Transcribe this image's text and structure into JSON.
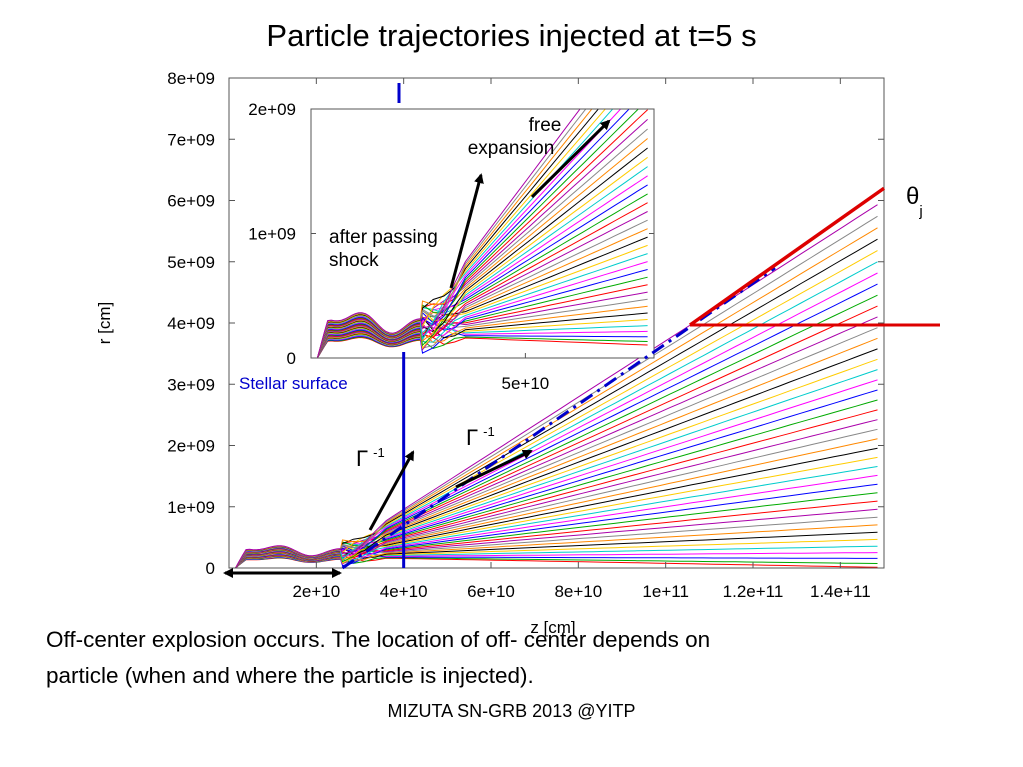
{
  "slide": {
    "title": "Particle trajectories injected at  t=5 s",
    "caption_line1": "Off-center explosion occurs. The location of off- center depends on",
    "caption_line2": "particle (when and where the particle is injected).",
    "footer": "MIZUTA SN-GRB 2013 @YITP"
  },
  "chart_data": [
    {
      "type": "line",
      "role": "main",
      "xlabel": "z [cm]",
      "ylabel": "r [cm]",
      "xlim": [
        0,
        150000000000.0
      ],
      "ylim": [
        0,
        8000000000.0
      ],
      "x_ticks": [
        20000000000.0,
        40000000000.0,
        60000000000.0,
        80000000000.0,
        100000000000.0,
        120000000000.0,
        140000000000.0
      ],
      "x_tick_labels": [
        "2e+10",
        "4e+10",
        "6e+10",
        "8e+10",
        "1e+11",
        "1.2e+11",
        "1.4e+11"
      ],
      "y_ticks": [
        0,
        1000000000.0,
        2000000000.0,
        3000000000.0,
        4000000000.0,
        5000000000.0,
        6000000000.0,
        7000000000.0,
        8000000000.0
      ],
      "y_tick_labels": [
        "0",
        "1e+09",
        "2e+09",
        "3e+09",
        "4e+09",
        "5e+09",
        "6e+09",
        "7e+09",
        "8e+09"
      ],
      "grid": false,
      "trajectories": {
        "count": 40,
        "start_z": 26000000000.0,
        "end_z": 150000000000.0,
        "end_r_min": 10000000.0,
        "end_r_max": 6000000000.0,
        "colors": [
          "#ff0000",
          "#00aa00",
          "#0000ff",
          "#ff00ff",
          "#00cccc",
          "#ffcc00",
          "#000000",
          "#ff8800",
          "#888888",
          "#aa00aa"
        ]
      },
      "annotations": {
        "stellar_surface": "Stellar surface",
        "stellar_surface_z": 40000000000.0,
        "gamma_base": "Γ",
        "gamma_exp": "-1",
        "theta_base": "θ",
        "theta_sub": "j",
        "jet_angle_r_at_zmax": 6200000000.0
      }
    },
    {
      "type": "line",
      "role": "inset",
      "xlim": [
        0,
        80000000000.0
      ],
      "ylim": [
        0,
        2000000000.0
      ],
      "x_ticks": [
        50000000000.0
      ],
      "x_tick_labels": [
        "5e+10"
      ],
      "y_ticks": [
        0,
        1000000000.0,
        2000000000.0
      ],
      "y_tick_labels": [
        "0",
        "1e+09",
        "2e+09"
      ],
      "annotations": {
        "free_line1": "free",
        "free_line2": "expansion",
        "after_line1": "after passing",
        "after_line2": "shock"
      }
    }
  ],
  "colors": {
    "jet_angle_line": "#dd0000",
    "stellar_surface": "#0000cc",
    "dash_line": "#0000cc"
  }
}
